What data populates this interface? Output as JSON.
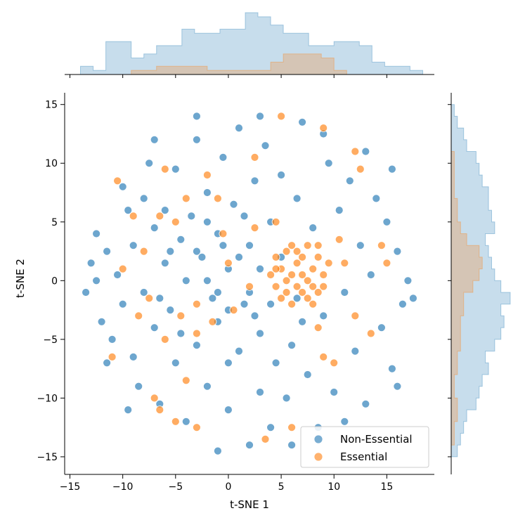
{
  "chart_data": {
    "type": "scatter",
    "title": "",
    "xlabel": "t-SNE 1",
    "ylabel": "t-SNE 2",
    "xlim": [
      -15.5,
      19.5
    ],
    "ylim": [
      -16.5,
      16
    ],
    "xticks": [
      -15,
      -10,
      -5,
      0,
      5,
      10,
      15
    ],
    "yticks": [
      -15,
      -10,
      -5,
      0,
      5,
      10,
      15
    ],
    "xtick_labels": [
      "−15",
      "−10",
      "−5",
      "0",
      "5",
      "10",
      "15"
    ],
    "ytick_labels": [
      "−15",
      "−10",
      "−5",
      "0",
      "5",
      "10",
      "15"
    ],
    "grid": false,
    "legend_position": "lower right",
    "marginal_histograms": true,
    "series": [
      {
        "name": "Non-Essential",
        "color": "#1f77b4",
        "points": [
          [
            -13.5,
            -1.0
          ],
          [
            -13.0,
            1.5
          ],
          [
            -12.5,
            4.0
          ],
          [
            -12.0,
            -3.5
          ],
          [
            -11.5,
            2.5
          ],
          [
            -11.0,
            -5.0
          ],
          [
            -10.5,
            0.5
          ],
          [
            -10.0,
            8.0
          ],
          [
            -10.0,
            -2.0
          ],
          [
            -9.5,
            6.0
          ],
          [
            -9.0,
            -6.5
          ],
          [
            -9.0,
            3.0
          ],
          [
            -8.5,
            -9.0
          ],
          [
            -8.0,
            7.0
          ],
          [
            -8.0,
            -1.0
          ],
          [
            -7.5,
            10.0
          ],
          [
            -7.0,
            4.5
          ],
          [
            -7.0,
            -4.0
          ],
          [
            -6.5,
            -10.5
          ],
          [
            -6.0,
            1.5
          ],
          [
            -6.0,
            6.0
          ],
          [
            -5.5,
            -2.5
          ],
          [
            -5.0,
            9.5
          ],
          [
            -5.0,
            -7.0
          ],
          [
            -4.5,
            3.5
          ],
          [
            -4.0,
            -12.0
          ],
          [
            -4.0,
            0.0
          ],
          [
            -3.5,
            5.5
          ],
          [
            -3.0,
            -5.5
          ],
          [
            -3.0,
            12.0
          ],
          [
            -2.5,
            2.0
          ],
          [
            -2.0,
            -9.0
          ],
          [
            -2.0,
            7.5
          ],
          [
            -1.5,
            -1.5
          ],
          [
            -1.0,
            4.0
          ],
          [
            -1.0,
            -3.5
          ],
          [
            -0.5,
            10.5
          ],
          [
            0.0,
            -11.0
          ],
          [
            0.0,
            1.0
          ],
          [
            0.5,
            6.5
          ],
          [
            1.0,
            -6.0
          ],
          [
            1.0,
            13.0
          ],
          [
            1.5,
            -2.0
          ],
          [
            2.0,
            3.0
          ],
          [
            2.0,
            -14.0
          ],
          [
            2.5,
            8.5
          ],
          [
            3.0,
            -4.5
          ],
          [
            3.0,
            -9.5
          ],
          [
            3.5,
            11.5
          ],
          [
            4.0,
            5.0
          ],
          [
            4.0,
            -12.5
          ],
          [
            4.5,
            -7.0
          ],
          [
            5.0,
            9.0
          ],
          [
            5.5,
            -10.0
          ],
          [
            6.0,
            -5.5
          ],
          [
            6.5,
            7.0
          ],
          [
            7.0,
            13.5
          ],
          [
            7.5,
            -8.0
          ],
          [
            8.0,
            4.5
          ],
          [
            8.5,
            -12.5
          ],
          [
            9.0,
            -3.0
          ],
          [
            9.5,
            10.0
          ],
          [
            10.0,
            -9.5
          ],
          [
            10.5,
            6.0
          ],
          [
            11.0,
            -1.0
          ],
          [
            11.5,
            8.5
          ],
          [
            12.0,
            -6.0
          ],
          [
            12.5,
            3.0
          ],
          [
            13.0,
            -10.5
          ],
          [
            13.5,
            0.5
          ],
          [
            14.0,
            7.0
          ],
          [
            14.5,
            -4.0
          ],
          [
            15.0,
            5.0
          ],
          [
            15.5,
            -7.5
          ],
          [
            16.0,
            2.5
          ],
          [
            16.5,
            -2.0
          ],
          [
            17.0,
            0.0
          ],
          [
            17.5,
            -1.5
          ],
          [
            11.0,
            -12.0
          ],
          [
            6.0,
            -14.0
          ],
          [
            -1.0,
            -14.5
          ],
          [
            -9.5,
            -11.0
          ],
          [
            -11.5,
            -7.0
          ],
          [
            -12.5,
            0.0
          ],
          [
            9.0,
            12.5
          ],
          [
            3.0,
            14.0
          ],
          [
            -3.0,
            14.0
          ],
          [
            -7.0,
            12.0
          ],
          [
            13.0,
            11.0
          ],
          [
            15.5,
            9.5
          ],
          [
            16.0,
            -9.0
          ],
          [
            0.0,
            -7.0
          ],
          [
            -2.0,
            0.0
          ],
          [
            2.0,
            -1.0
          ],
          [
            1.0,
            2.0
          ],
          [
            -1.0,
            -1.0
          ],
          [
            3.0,
            1.0
          ],
          [
            0.0,
            -2.5
          ],
          [
            -3.0,
            2.5
          ],
          [
            2.5,
            -3.0
          ],
          [
            -2.0,
            5.0
          ],
          [
            1.5,
            5.5
          ],
          [
            -4.5,
            -4.5
          ],
          [
            4.0,
            -2.0
          ],
          [
            -0.5,
            3.0
          ],
          [
            6.5,
            -1.5
          ],
          [
            -5.5,
            2.5
          ],
          [
            5.0,
            2.0
          ],
          [
            -6.5,
            -1.5
          ],
          [
            7.0,
            -3.5
          ]
        ]
      },
      {
        "name": "Essential",
        "color": "#ff7f0e",
        "points": [
          [
            4.5,
            2.0
          ],
          [
            5.0,
            1.0
          ],
          [
            5.5,
            2.5
          ],
          [
            6.0,
            0.5
          ],
          [
            6.5,
            1.5
          ],
          [
            7.0,
            2.0
          ],
          [
            7.5,
            0.0
          ],
          [
            8.0,
            1.0
          ],
          [
            8.5,
            2.0
          ],
          [
            9.0,
            0.5
          ],
          [
            4.5,
            -0.5
          ],
          [
            5.5,
            -1.0
          ],
          [
            6.5,
            -0.5
          ],
          [
            7.5,
            -1.5
          ],
          [
            8.5,
            -1.0
          ],
          [
            5.0,
            -1.5
          ],
          [
            6.0,
            -2.0
          ],
          [
            7.0,
            -1.0
          ],
          [
            8.0,
            -2.0
          ],
          [
            9.5,
            1.5
          ],
          [
            4.0,
            0.5
          ],
          [
            6.0,
            3.0
          ],
          [
            7.5,
            3.0
          ],
          [
            8.5,
            3.0
          ],
          [
            5.5,
            0.0
          ],
          [
            7.0,
            0.5
          ],
          [
            6.5,
            2.5
          ],
          [
            9.0,
            -0.5
          ],
          [
            4.5,
            1.0
          ],
          [
            8.0,
            -0.5
          ],
          [
            -10.0,
            1.0
          ],
          [
            -8.0,
            2.5
          ],
          [
            -6.5,
            5.5
          ],
          [
            -5.0,
            5.0
          ],
          [
            -4.0,
            7.0
          ],
          [
            -6.0,
            9.5
          ],
          [
            -2.0,
            9.0
          ],
          [
            -1.0,
            7.0
          ],
          [
            -3.0,
            -2.0
          ],
          [
            -4.5,
            -3.0
          ],
          [
            0.5,
            -2.5
          ],
          [
            -7.5,
            -1.5
          ],
          [
            -8.5,
            -3.0
          ],
          [
            -6.0,
            -5.0
          ],
          [
            -3.0,
            -4.5
          ],
          [
            -7.0,
            -10.0
          ],
          [
            -6.5,
            -11.0
          ],
          [
            -5.0,
            -12.0
          ],
          [
            -3.0,
            -12.5
          ],
          [
            -4.0,
            -8.5
          ],
          [
            3.5,
            -13.5
          ],
          [
            6.0,
            -12.5
          ],
          [
            10.0,
            -7.0
          ],
          [
            9.0,
            -6.5
          ],
          [
            8.5,
            -4.0
          ],
          [
            10.5,
            3.5
          ],
          [
            12.5,
            9.5
          ],
          [
            14.5,
            3.0
          ],
          [
            15.0,
            1.5
          ],
          [
            12.0,
            -3.0
          ],
          [
            9.0,
            13.0
          ],
          [
            5.0,
            14.0
          ],
          [
            2.5,
            10.5
          ],
          [
            -0.5,
            4.0
          ],
          [
            2.0,
            -0.5
          ],
          [
            4.5,
            5.0
          ],
          [
            2.5,
            4.5
          ],
          [
            -9.0,
            5.5
          ],
          [
            -11.0,
            -6.5
          ],
          [
            -10.5,
            8.5
          ],
          [
            12.0,
            11.0
          ],
          [
            11.0,
            1.5
          ],
          [
            13.5,
            -4.5
          ],
          [
            0.0,
            1.5
          ],
          [
            -1.5,
            -3.5
          ]
        ]
      }
    ],
    "top_histogram": {
      "bin_edges": [
        -14.0,
        -12.8,
        -11.6,
        -10.4,
        -9.2,
        -8.0,
        -6.8,
        -5.6,
        -4.4,
        -3.2,
        -2.0,
        -0.8,
        0.4,
        1.6,
        2.8,
        4.0,
        5.2,
        6.4,
        7.6,
        8.8,
        10.0,
        11.2,
        12.4,
        13.6,
        14.8,
        16.0,
        17.2,
        18.4
      ],
      "non_essential": [
        2,
        1,
        8,
        8,
        4,
        5,
        7,
        7,
        11,
        10,
        10,
        11,
        11,
        15,
        14,
        12,
        10,
        10,
        7,
        7,
        8,
        8,
        7,
        3,
        2,
        2,
        1
      ],
      "essential": [
        0,
        0,
        0,
        0,
        1,
        1,
        2,
        2,
        2,
        2,
        1,
        1,
        1,
        1,
        1,
        3,
        5,
        5,
        5,
        4,
        1,
        0,
        0,
        0,
        0,
        0,
        0
      ]
    },
    "right_histogram": {
      "bin_edges": [
        -15.0,
        -14.0,
        -13.0,
        -12.0,
        -11.0,
        -10.0,
        -9.0,
        -8.0,
        -7.0,
        -6.0,
        -5.0,
        -4.0,
        -3.0,
        -2.0,
        -1.0,
        0.0,
        1.0,
        2.0,
        3.0,
        4.0,
        5.0,
        6.0,
        7.0,
        8.0,
        9.0,
        10.0,
        11.0,
        12.0,
        13.0,
        14.0,
        15.0
      ],
      "non_essential": [
        2,
        3,
        4,
        5,
        8,
        9,
        10,
        12,
        11,
        14,
        16,
        17,
        16,
        19,
        16,
        14,
        13,
        12,
        11,
        14,
        13,
        12,
        12,
        10,
        9,
        8,
        5,
        4,
        2,
        1
      ],
      "essential": [
        0,
        1,
        1,
        2,
        2,
        1,
        1,
        2,
        2,
        3,
        3,
        3,
        4,
        4,
        7,
        9,
        10,
        9,
        5,
        3,
        2,
        2,
        1,
        1,
        1,
        1,
        0,
        0,
        0,
        0
      ]
    }
  }
}
